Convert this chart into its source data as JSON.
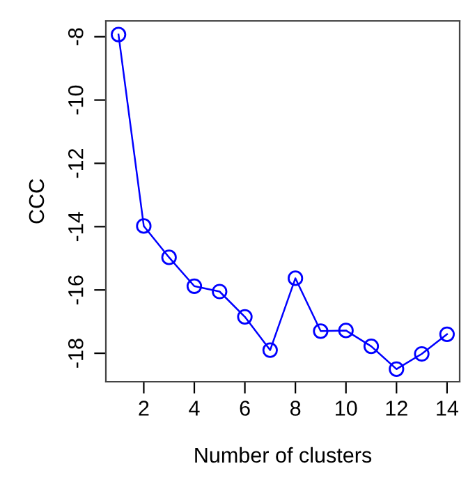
{
  "chart_data": {
    "type": "line",
    "xlabel": "Number of clusters",
    "ylabel": "CCC",
    "x": [
      1,
      2,
      3,
      4,
      5,
      6,
      7,
      8,
      9,
      10,
      11,
      12,
      13,
      14
    ],
    "series": [
      {
        "color": "#0000ff",
        "values": [
          -7.93,
          -13.98,
          -14.97,
          -15.88,
          -16.05,
          -16.85,
          -17.9,
          -15.63,
          -17.3,
          -17.28,
          -17.78,
          -18.5,
          -18.02,
          -17.4
        ]
      }
    ],
    "xlim": [
      0.5,
      14.5
    ],
    "ylim": [
      -18.9,
      -7.5
    ],
    "xticks": [
      2,
      4,
      6,
      8,
      10,
      12,
      14
    ],
    "yticks": [
      -18,
      -16,
      -14,
      -12,
      -10,
      -8
    ],
    "marker": "circle",
    "grid": false,
    "legend": false
  }
}
